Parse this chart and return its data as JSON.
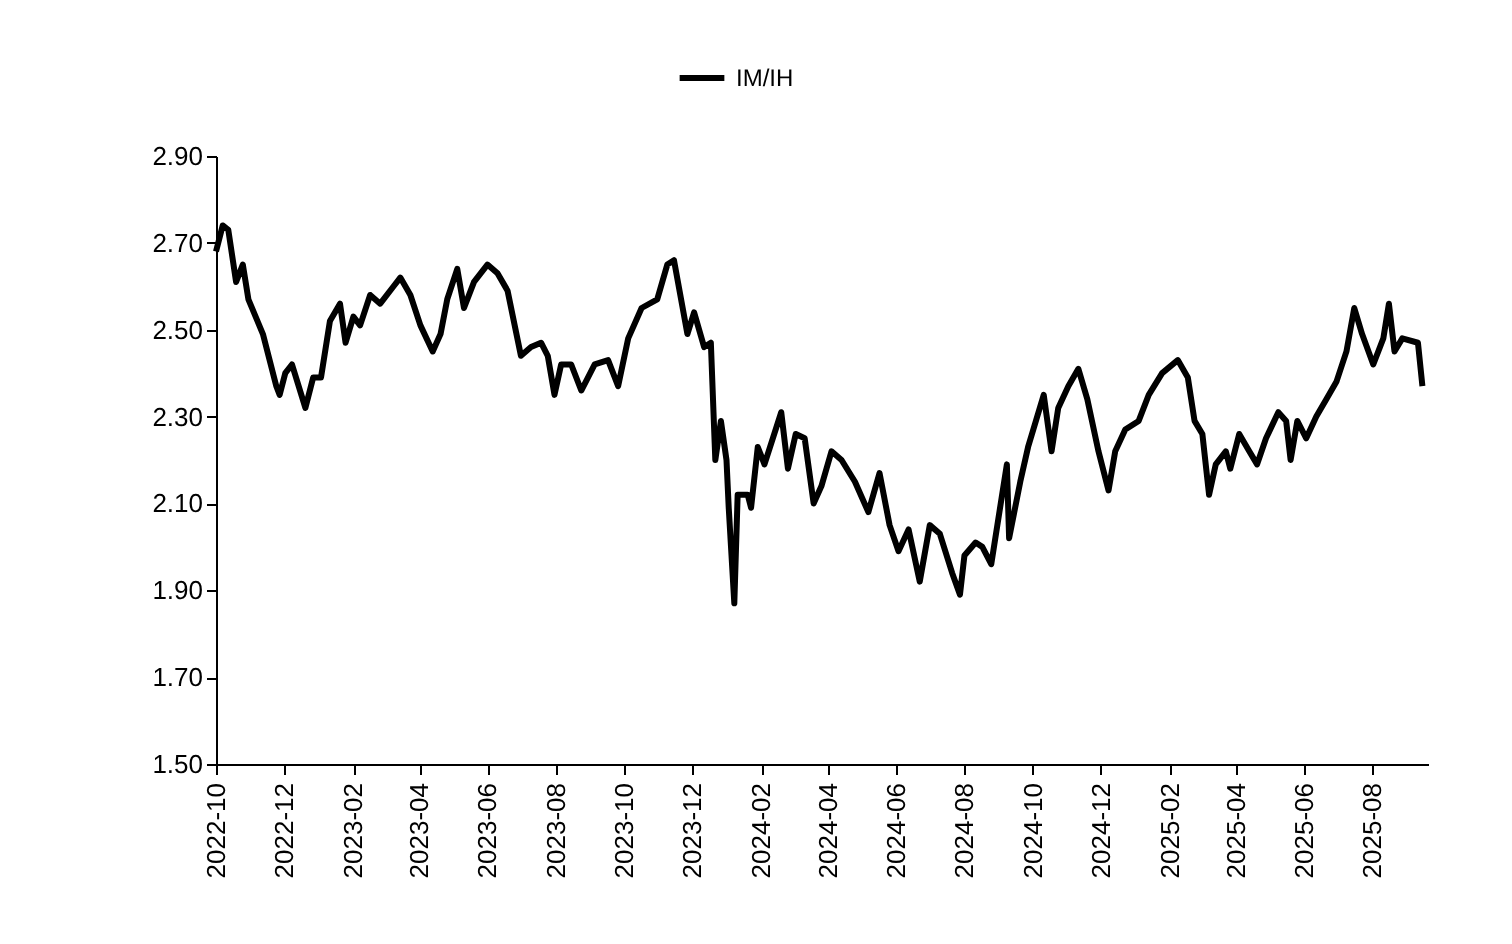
{
  "chart_data": {
    "type": "line",
    "x": [
      "2022-10-01",
      "2022-10-07",
      "2022-10-12",
      "2022-10-19",
      "2022-10-25",
      "2022-10-30",
      "2022-11-12",
      "2022-11-24",
      "2022-11-27",
      "2022-12-02",
      "2022-12-08",
      "2022-12-14",
      "2022-12-20",
      "2022-12-27",
      "2023-01-03",
      "2023-01-11",
      "2023-01-20",
      "2023-01-25",
      "2023-02-01",
      "2023-02-07",
      "2023-02-16",
      "2023-02-25",
      "2023-03-09",
      "2023-03-15",
      "2023-03-24",
      "2023-04-02",
      "2023-04-13",
      "2023-04-20",
      "2023-04-26",
      "2023-05-05",
      "2023-05-11",
      "2023-05-20",
      "2023-06-01",
      "2023-06-10",
      "2023-06-19",
      "2023-07-01",
      "2023-07-10",
      "2023-07-19",
      "2023-07-25",
      "2023-07-31",
      "2023-08-06",
      "2023-08-15",
      "2023-08-24",
      "2023-09-05",
      "2023-09-17",
      "2023-09-26",
      "2023-10-05",
      "2023-10-17",
      "2023-10-31",
      "2023-11-09",
      "2023-11-15",
      "2023-11-27",
      "2023-12-03",
      "2023-12-12",
      "2023-12-18",
      "2023-12-22",
      "2023-12-27",
      "2024-01-01",
      "2024-01-03",
      "2024-01-08",
      "2024-01-11",
      "2024-01-20",
      "2024-01-23",
      "2024-01-29",
      "2024-02-04",
      "2024-02-19",
      "2024-02-25",
      "2024-03-03",
      "2024-03-11",
      "2024-03-19",
      "2024-03-26",
      "2024-04-04",
      "2024-04-13",
      "2024-04-25",
      "2024-05-07",
      "2024-05-17",
      "2024-05-26",
      "2024-06-03",
      "2024-06-12",
      "2024-06-22",
      "2024-07-01",
      "2024-07-10",
      "2024-07-21",
      "2024-07-28",
      "2024-08-01",
      "2024-08-11",
      "2024-08-17",
      "2024-08-25",
      "2024-09-08",
      "2024-09-10",
      "2024-09-20",
      "2024-09-27",
      "2024-10-04",
      "2024-10-11",
      "2024-10-18",
      "2024-10-24",
      "2024-11-02",
      "2024-11-11",
      "2024-11-19",
      "2024-11-29",
      "2024-12-08",
      "2024-12-14",
      "2024-12-23",
      "2025-01-04",
      "2025-01-13",
      "2025-01-25",
      "2025-02-08",
      "2025-02-17",
      "2025-02-23",
      "2025-03-02",
      "2025-03-08",
      "2025-03-14",
      "2025-03-23",
      "2025-03-27",
      "2025-04-04",
      "2025-04-13",
      "2025-04-20",
      "2025-04-28",
      "2025-05-09",
      "2025-05-16",
      "2025-05-20",
      "2025-05-26",
      "2025-06-03",
      "2025-06-12",
      "2025-06-21",
      "2025-06-30",
      "2025-07-09",
      "2025-07-16",
      "2025-07-23",
      "2025-08-02",
      "2025-08-11",
      "2025-08-16",
      "2025-08-21",
      "2025-08-28",
      "2025-09-11",
      "2025-09-15"
    ],
    "series": [
      {
        "name": "IM/IH",
        "color": "#000000",
        "values": [
          2.68,
          2.74,
          2.73,
          2.61,
          2.65,
          2.57,
          2.49,
          2.37,
          2.35,
          2.4,
          2.42,
          2.37,
          2.32,
          2.39,
          2.39,
          2.52,
          2.56,
          2.47,
          2.53,
          2.51,
          2.58,
          2.56,
          2.6,
          2.62,
          2.58,
          2.51,
          2.45,
          2.49,
          2.57,
          2.64,
          2.55,
          2.61,
          2.65,
          2.63,
          2.59,
          2.44,
          2.46,
          2.47,
          2.44,
          2.35,
          2.42,
          2.42,
          2.36,
          2.42,
          2.43,
          2.37,
          2.48,
          2.55,
          2.57,
          2.65,
          2.66,
          2.49,
          2.54,
          2.46,
          2.47,
          2.2,
          2.29,
          2.2,
          2.09,
          1.87,
          2.12,
          2.12,
          2.09,
          2.23,
          2.19,
          2.31,
          2.18,
          2.26,
          2.25,
          2.1,
          2.14,
          2.22,
          2.2,
          2.15,
          2.08,
          2.17,
          2.05,
          1.99,
          2.04,
          1.92,
          2.05,
          2.03,
          1.94,
          1.89,
          1.98,
          2.01,
          2.0,
          1.96,
          2.19,
          2.02,
          2.15,
          2.23,
          2.29,
          2.35,
          2.22,
          2.32,
          2.37,
          2.41,
          2.34,
          2.22,
          2.13,
          2.22,
          2.27,
          2.29,
          2.35,
          2.4,
          2.43,
          2.39,
          2.29,
          2.26,
          2.12,
          2.19,
          2.22,
          2.18,
          2.26,
          2.22,
          2.19,
          2.25,
          2.31,
          2.29,
          2.2,
          2.29,
          2.25,
          2.3,
          2.34,
          2.38,
          2.45,
          2.55,
          2.49,
          2.42,
          2.48,
          2.56,
          2.45,
          2.48,
          2.47,
          2.37
        ]
      }
    ],
    "xlim": [
      "2022-10-01",
      "2025-09-20"
    ],
    "xticks": [
      {
        "value": "2022-10",
        "label": "2022-10"
      },
      {
        "value": "2022-12",
        "label": "2022-12"
      },
      {
        "value": "2023-02",
        "label": "2023-02"
      },
      {
        "value": "2023-04",
        "label": "2023-04"
      },
      {
        "value": "2023-06",
        "label": "2023-06"
      },
      {
        "value": "2023-08",
        "label": "2023-08"
      },
      {
        "value": "2023-10",
        "label": "2023-10"
      },
      {
        "value": "2023-12",
        "label": "2023-12"
      },
      {
        "value": "2024-02",
        "label": "2024-02"
      },
      {
        "value": "2024-04",
        "label": "2024-04"
      },
      {
        "value": "2024-06",
        "label": "2024-06"
      },
      {
        "value": "2024-08",
        "label": "2024-08"
      },
      {
        "value": "2024-10",
        "label": "2024-10"
      },
      {
        "value": "2024-12",
        "label": "2024-12"
      },
      {
        "value": "2025-02",
        "label": "2025-02"
      },
      {
        "value": "2025-04",
        "label": "2025-04"
      },
      {
        "value": "2025-06",
        "label": "2025-06"
      },
      {
        "value": "2025-08",
        "label": "2025-08"
      }
    ],
    "ylim": [
      1.5,
      2.9
    ],
    "yticks": [
      {
        "value": 1.5,
        "label": "1.50"
      },
      {
        "value": 1.7,
        "label": "1.70"
      },
      {
        "value": 1.9,
        "label": "1.90"
      },
      {
        "value": 2.1,
        "label": "2.10"
      },
      {
        "value": 2.3,
        "label": "2.30"
      },
      {
        "value": 2.5,
        "label": "2.50"
      },
      {
        "value": 2.7,
        "label": "2.70"
      },
      {
        "value": 2.9,
        "label": "2.90"
      }
    ],
    "legend": "top",
    "grid": false
  }
}
